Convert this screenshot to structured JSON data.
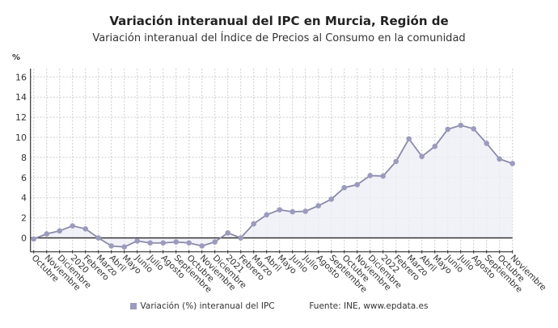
{
  "chart_data": {
    "type": "area",
    "title": "Variación interanual del IPC en Murcia, Región de",
    "subtitle": "Variación interanual del Índice de Precios al Consumo en la comunidad",
    "ylabel": "%",
    "xlabel": "",
    "ylim": [
      -1,
      17
    ],
    "yticks": [
      0,
      2,
      4,
      6,
      8,
      10,
      12,
      14,
      16
    ],
    "grid": true,
    "legend_position": "bottom",
    "categories": [
      "Octubre",
      "Noviembre",
      "Diciembre",
      "2020",
      "Febrero",
      "Marzo",
      "Abril",
      "Mayo",
      "Junio",
      "Julio",
      "Agosto",
      "Septiembre",
      "Octubre",
      "Noviembre",
      "Diciembre",
      "2021",
      "Febrero",
      "Marzo",
      "Abril",
      "Mayo",
      "Junio",
      "Julio",
      "Agosto",
      "Septiembre",
      "Octubre",
      "Noviembre",
      "Diciembre",
      "2022",
      "Febrero",
      "Marzo",
      "Abril",
      "Mayo",
      "Junio",
      "Julio",
      "Agosto",
      "Septiembre",
      "Octubre",
      "Noviembre"
    ],
    "series": [
      {
        "name": "Variación (%) interanual del IPC",
        "color": "#9b9bbd",
        "values": [
          -0.1,
          0.4,
          0.7,
          1.2,
          0.9,
          0.0,
          -0.8,
          -0.9,
          -0.3,
          -0.5,
          -0.5,
          -0.4,
          -0.5,
          -0.8,
          -0.4,
          0.5,
          0.0,
          1.4,
          2.3,
          2.8,
          2.6,
          2.65,
          3.2,
          3.85,
          5.0,
          5.3,
          6.2,
          6.15,
          7.6,
          9.85,
          8.1,
          9.1,
          10.8,
          11.2,
          10.85,
          9.4,
          7.85,
          7.4
        ]
      }
    ],
    "source": "Fuente: INE, www.epdata.es"
  }
}
